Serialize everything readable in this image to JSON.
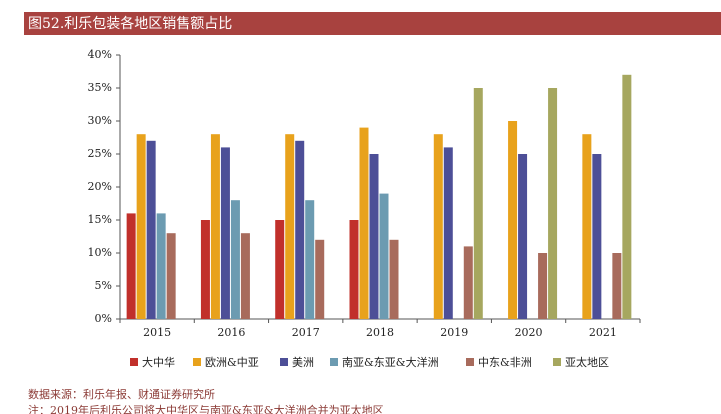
{
  "header": {
    "title": "图52.利乐包装各地区销售额占比"
  },
  "chart_data": {
    "type": "bar",
    "categories": [
      "2015",
      "2016",
      "2017",
      "2018",
      "2019",
      "2020",
      "2021"
    ],
    "series": [
      {
        "name": "大中华",
        "color": "#c1302b",
        "values": [
          16,
          15,
          15,
          15,
          null,
          null,
          null
        ]
      },
      {
        "name": "欧洲&中亚",
        "color": "#e8a21c",
        "values": [
          28,
          28,
          28,
          29,
          28,
          30,
          28
        ]
      },
      {
        "name": "美洲",
        "color": "#4d4f97",
        "values": [
          27,
          26,
          27,
          25,
          26,
          25,
          25
        ]
      },
      {
        "name": "南亚&东亚&大洋洲",
        "color": "#6c9bb1",
        "values": [
          16,
          18,
          18,
          19,
          null,
          null,
          null
        ]
      },
      {
        "name": "中东&非洲",
        "color": "#a86b5c",
        "values": [
          13,
          13,
          12,
          12,
          11,
          10,
          10
        ]
      },
      {
        "name": "亚太地区",
        "color": "#a6a75f",
        "values": [
          null,
          null,
          null,
          null,
          35,
          35,
          37
        ]
      }
    ],
    "ylim": [
      0,
      40
    ],
    "yticks": [
      {
        "value": 0,
        "label": "0%"
      },
      {
        "value": 5,
        "label": "5%"
      },
      {
        "value": 10,
        "label": "10%"
      },
      {
        "value": 15,
        "label": "15%"
      },
      {
        "value": 20,
        "label": "20%"
      },
      {
        "value": 25,
        "label": "25%"
      },
      {
        "value": 30,
        "label": "30%"
      },
      {
        "value": 35,
        "label": "35%"
      },
      {
        "value": 40,
        "label": "40%"
      }
    ],
    "legend": "bottom"
  },
  "footer": {
    "source": "数据来源：利乐年报、财通证券研究所",
    "note": "注：2019年后利乐公司将大中华区与南亚&东亚&大洋洲合并为亚太地区"
  }
}
